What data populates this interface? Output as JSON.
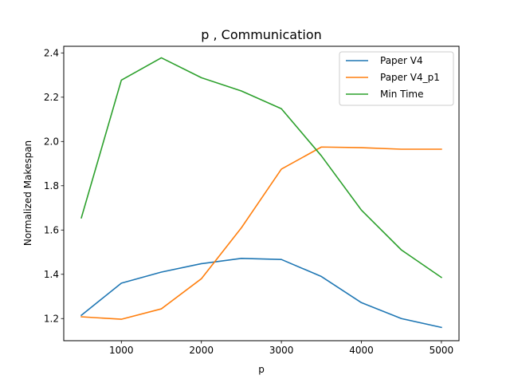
{
  "chart_data": {
    "type": "line",
    "title": "p , Communication",
    "xlabel": "p",
    "ylabel": "Normalized Makespan",
    "x": [
      500,
      1000,
      1500,
      2000,
      2500,
      3000,
      3500,
      4000,
      4500,
      5000
    ],
    "xlim": [
      280,
      5220
    ],
    "ylim": [
      1.1,
      2.43
    ],
    "xticks": [
      1000,
      2000,
      3000,
      4000,
      5000
    ],
    "yticks": [
      1.2,
      1.4,
      1.6,
      1.8,
      2.0,
      2.2,
      2.4
    ],
    "xtick_labels": [
      "1000",
      "2000",
      "3000",
      "4000",
      "5000"
    ],
    "ytick_labels": [
      "1.2",
      "1.4",
      "1.6",
      "1.8",
      "2.0",
      "2.2",
      "2.4"
    ],
    "grid": false,
    "legend_position": "top-right",
    "series": [
      {
        "name": "Paper V4",
        "color": "#1f77b4",
        "values": [
          1.215,
          1.36,
          1.41,
          1.448,
          1.472,
          1.467,
          1.39,
          1.272,
          1.2,
          1.16
        ]
      },
      {
        "name": "Paper V4_p1",
        "color": "#ff7f0e",
        "values": [
          1.208,
          1.197,
          1.244,
          1.38,
          1.61,
          1.875,
          1.975,
          1.972,
          1.965,
          1.965
        ]
      },
      {
        "name": "Min Time",
        "color": "#2ca02c",
        "values": [
          1.655,
          2.277,
          2.378,
          2.288,
          2.228,
          2.148,
          1.935,
          1.69,
          1.51,
          1.386
        ]
      }
    ]
  }
}
